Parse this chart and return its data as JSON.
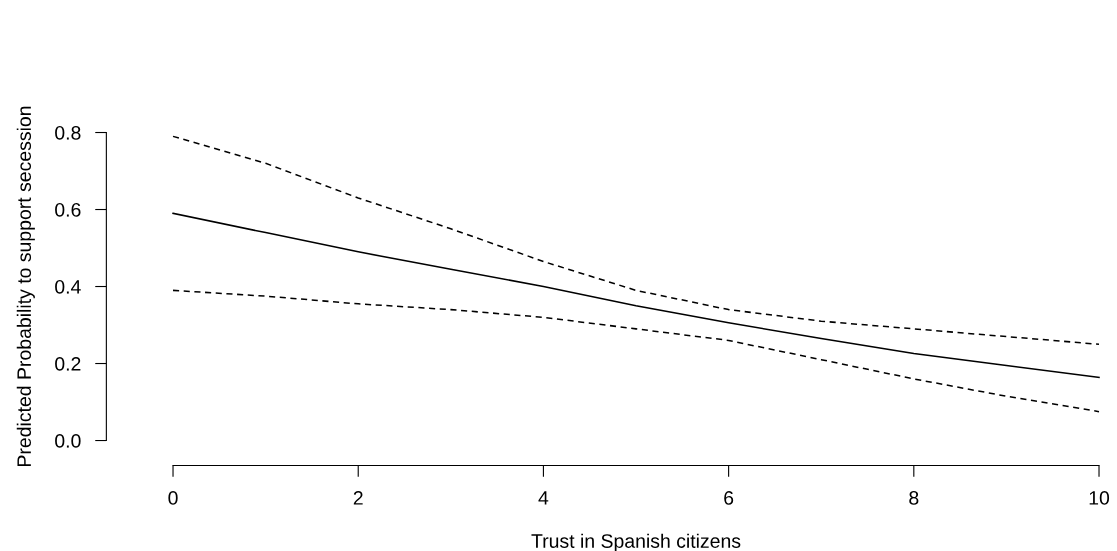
{
  "chart_data": {
    "type": "line",
    "xlabel": "Trust in Spanish citizens",
    "ylabel": "Predicted Probability to support secession",
    "x": [
      0,
      1,
      2,
      3,
      4,
      5,
      6,
      7,
      8,
      9,
      10
    ],
    "series": [
      {
        "color": "#000000",
        "line_style": "solid",
        "values": [
          0.59,
          0.54,
          0.49,
          0.445,
          0.4,
          0.35,
          0.306,
          0.265,
          0.226,
          0.195,
          0.164
        ]
      },
      {
        "color": "#000000",
        "line_style": "dashed",
        "values": [
          0.79,
          0.72,
          0.63,
          0.55,
          0.465,
          0.39,
          0.34,
          0.31,
          0.29,
          0.27,
          0.25
        ]
      },
      {
        "color": "#000000",
        "line_style": "dashed",
        "values": [
          0.39,
          0.375,
          0.355,
          0.34,
          0.32,
          0.29,
          0.26,
          0.21,
          0.16,
          0.115,
          0.075
        ]
      }
    ],
    "xlim": [
      0,
      10
    ],
    "ylim": [
      0,
      0.8
    ],
    "xticks": [
      0,
      2,
      4,
      6,
      8,
      10
    ],
    "yticks": [
      {
        "value": 0,
        "label": "0.0"
      },
      {
        "value": 0.2,
        "label": "0.2"
      },
      {
        "value": 0.4,
        "label": "0.4"
      },
      {
        "value": 0.6,
        "label": "0.6"
      },
      {
        "value": 0.8,
        "label": "0.8"
      }
    ],
    "grid": false,
    "legend": false,
    "marker": "none"
  }
}
